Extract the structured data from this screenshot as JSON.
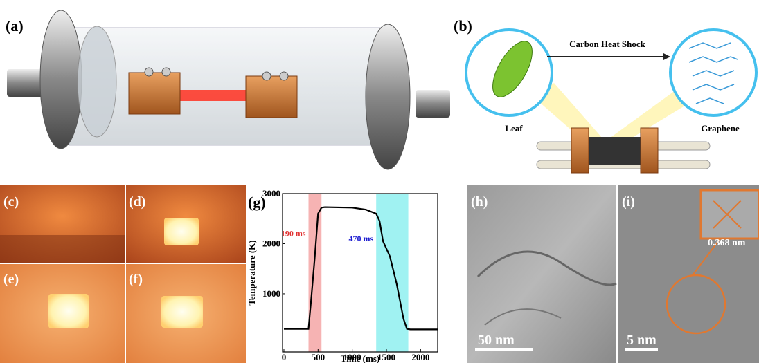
{
  "panels": {
    "a": "(a)",
    "b": "(b)",
    "c": "(c)",
    "d": "(d)",
    "e": "(e)",
    "f": "(f)",
    "g": "(g)",
    "h": "(h)",
    "i": "(i)"
  },
  "schematic": {
    "process": "Carbon Heat Shock",
    "source": "Leaf",
    "product": "Graphene"
  },
  "micrographs": {
    "h_scale": "50 nm",
    "i_scale": "5 nm",
    "i_spacing": "0.368 nm"
  },
  "chart_data": {
    "type": "line",
    "xlabel": "Time (ms)",
    "ylabel": "Temperature (K)",
    "x": [
      0,
      360,
      400,
      450,
      500,
      550,
      600,
      1000,
      1200,
      1350,
      1400,
      1450,
      1550,
      1650,
      1750,
      1800,
      1850,
      2250
    ],
    "values": [
      300,
      300,
      900,
      1700,
      2600,
      2720,
      2730,
      2720,
      2680,
      2600,
      2450,
      2050,
      1750,
      1200,
      500,
      300,
      290,
      290
    ],
    "color": "#000000",
    "spans": [
      {
        "range": [
          360,
          550
        ],
        "color": "#f4a6a6",
        "label": "190 ms",
        "label_color": "#e03030"
      },
      {
        "range": [
          1350,
          1820
        ],
        "color": "#8ff0f0",
        "label": "470 ms",
        "label_color": "#1a1ad0"
      }
    ],
    "xlim": [
      -20,
      2250
    ],
    "ylim": [
      -160,
      3000
    ],
    "xticks": [
      0,
      500,
      1000,
      1500,
      2000
    ],
    "yticks": [
      1000,
      2000,
      3000
    ]
  }
}
